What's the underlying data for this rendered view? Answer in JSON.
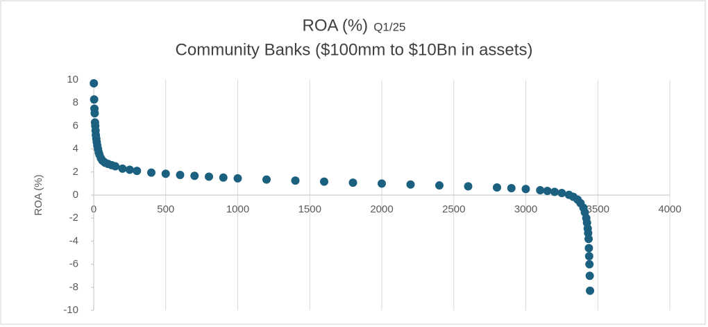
{
  "chart_data": {
    "type": "scatter",
    "title": "ROA (%)",
    "title_note": "Q1/25",
    "subtitle": "Community Banks ($100mm to $10Bn in assets)",
    "y_label": "ROA (%)",
    "color": "#1c6080",
    "grid": true,
    "xlim": [
      0,
      4000
    ],
    "xticks": [
      0,
      500,
      1000,
      1500,
      2000,
      2500,
      3000,
      3500,
      4000
    ],
    "ylim": [
      -10,
      10
    ],
    "yticks": [
      -10,
      -8,
      -6,
      -4,
      -2,
      0,
      2,
      4,
      6,
      8,
      10
    ],
    "x": [
      1,
      3,
      5,
      7,
      9,
      11,
      13,
      15,
      18,
      21,
      25,
      30,
      35,
      40,
      50,
      60,
      70,
      80,
      100,
      125,
      150,
      200,
      250,
      300,
      400,
      500,
      600,
      700,
      800,
      900,
      1000,
      1200,
      1400,
      1600,
      1800,
      2000,
      2200,
      2400,
      2600,
      2800,
      2900,
      3000,
      3100,
      3150,
      3200,
      3250,
      3300,
      3330,
      3360,
      3380,
      3400,
      3410,
      3420,
      3425,
      3430,
      3433,
      3436,
      3438,
      3440,
      3442,
      3444,
      3446
    ],
    "y": [
      9.7,
      8.3,
      7.5,
      7.1,
      6.3,
      6.0,
      5.6,
      5.2,
      4.9,
      4.6,
      4.3,
      4.0,
      3.7,
      3.5,
      3.2,
      3.0,
      2.9,
      2.8,
      2.7,
      2.6,
      2.5,
      2.3,
      2.2,
      2.1,
      1.95,
      1.85,
      1.75,
      1.67,
      1.6,
      1.52,
      1.45,
      1.35,
      1.26,
      1.17,
      1.08,
      1.0,
      0.92,
      0.84,
      0.76,
      0.66,
      0.6,
      0.53,
      0.42,
      0.36,
      0.28,
      0.18,
      0.02,
      -0.15,
      -0.4,
      -0.7,
      -1.1,
      -1.5,
      -2.0,
      -2.4,
      -2.9,
      -3.3,
      -3.8,
      -4.6,
      -5.3,
      -6.0,
      -7.0,
      -8.3
    ]
  }
}
